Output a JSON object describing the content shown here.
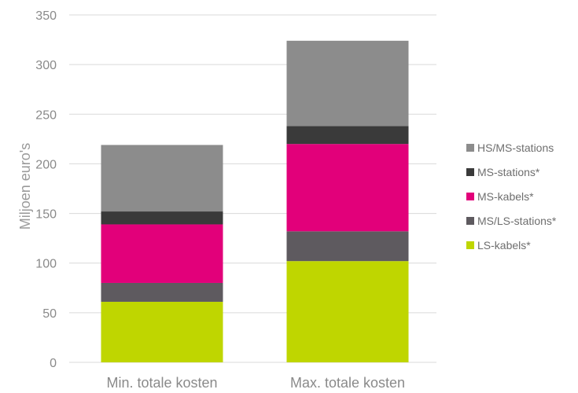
{
  "chart_data": {
    "type": "bar",
    "stacked": true,
    "categories": [
      "Min. totale kosten",
      "Max. totale kosten"
    ],
    "ylabel": "Miljoen euro's",
    "ylim": [
      0,
      350
    ],
    "yticks": [
      0,
      50,
      100,
      150,
      200,
      250,
      300,
      350
    ],
    "grid": true,
    "legend_position": "right",
    "series": [
      {
        "name": "LS-kabels*",
        "values": [
          61,
          102
        ],
        "color": "#bfd600"
      },
      {
        "name": "MS/LS-stations*",
        "values": [
          19,
          30
        ],
        "color": "#5e5a5f"
      },
      {
        "name": "MS-kabels*",
        "values": [
          59,
          88
        ],
        "color": "#e2007a"
      },
      {
        "name": "MS-stations*",
        "values": [
          13,
          18
        ],
        "color": "#3a3a3a"
      },
      {
        "name": "HS/MS-stations",
        "values": [
          67,
          86
        ],
        "color": "#8c8c8c"
      }
    ]
  }
}
